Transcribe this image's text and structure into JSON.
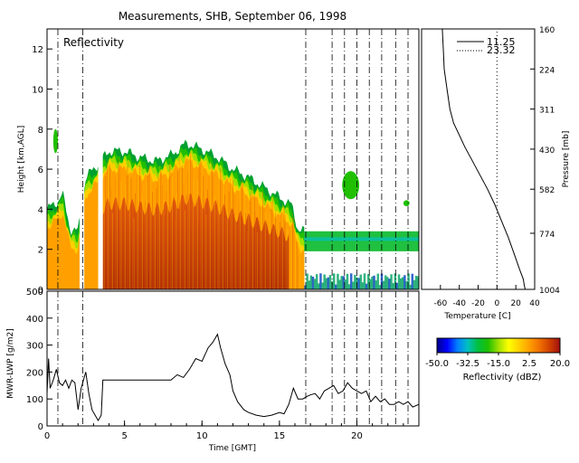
{
  "title": "Measurements, SHB, September 06, 1998",
  "colors": {
    "background": "#ffffff",
    "ink": "#000000",
    "colormap": [
      "#00008b",
      "#0000ff",
      "#0080ff",
      "#00c0c0",
      "#00c040",
      "#20c000",
      "#a0e000",
      "#ffff00",
      "#ffd000",
      "#ffa000",
      "#f07000",
      "#d04000",
      "#a01010"
    ]
  },
  "chart_data": [
    {
      "id": "reflectivity",
      "type": "heatmap",
      "panel_label": "Reflectivity",
      "xlim": [
        0,
        24
      ],
      "ylim": [
        0,
        13
      ],
      "ylabel": "Height [km,AGL]",
      "yticks": [
        0,
        2,
        4,
        6,
        8,
        10,
        12
      ],
      "dashdot_lines_x": [
        0.7,
        2.3,
        16.7,
        18.4,
        19.2,
        20.0,
        20.8,
        21.6,
        22.5,
        23.3
      ],
      "gaps_x": [
        [
          2.1,
          2.4
        ],
        [
          3.3,
          3.6
        ]
      ],
      "cloud_tops": [
        [
          0.0,
          4.0
        ],
        [
          0.7,
          4.4
        ],
        [
          1.0,
          4.8
        ],
        [
          1.5,
          3.0
        ],
        [
          2.0,
          2.9
        ],
        [
          2.5,
          5.6
        ],
        [
          3.0,
          6.0
        ],
        [
          4.0,
          6.9
        ],
        [
          5.0,
          6.9
        ],
        [
          6.0,
          6.6
        ],
        [
          7.0,
          6.4
        ],
        [
          8.0,
          6.7
        ],
        [
          9.0,
          7.3
        ],
        [
          10.0,
          7.0
        ],
        [
          11.0,
          6.6
        ],
        [
          12.0,
          6.0
        ],
        [
          13.0,
          5.6
        ],
        [
          14.0,
          5.1
        ],
        [
          15.0,
          4.6
        ],
        [
          15.8,
          4.2
        ],
        [
          16.2,
          3.0
        ],
        [
          16.6,
          2.9
        ]
      ],
      "low_cloud": {
        "x": [
          16.6,
          24.0
        ],
        "base_km": 1.9,
        "top_km": 2.9
      },
      "upper_blobs": [
        {
          "x": 19.6,
          "y": 5.2,
          "w": 1.1,
          "h": 1.4
        },
        {
          "x": 0.55,
          "y": 7.4,
          "w": 0.3,
          "h": 1.2
        },
        {
          "x": 23.2,
          "y": 4.3,
          "w": 0.4,
          "h": 0.3
        }
      ]
    },
    {
      "id": "temperature-profile",
      "type": "line",
      "xlabel": "Temperature [C]",
      "ylabel_right": "Pressure [mb]",
      "xlim": [
        -80,
        40
      ],
      "xticks": [
        -60,
        -40,
        -20,
        0,
        20,
        40
      ],
      "ylim_km": [
        0,
        13
      ],
      "pressure_ticks": [
        {
          "label": "160",
          "km": 13.0
        },
        {
          "label": "224",
          "km": 11.0
        },
        {
          "label": "311",
          "km": 9.0
        },
        {
          "label": "430",
          "km": 7.0
        },
        {
          "label": "582",
          "km": 5.0
        },
        {
          "label": "774",
          "km": 2.8
        },
        {
          "label": "1004",
          "km": 0.0
        }
      ],
      "series": [
        {
          "name": "11.25",
          "style": "solid",
          "points": [
            [
              30,
              0.0
            ],
            [
              29,
              0.2
            ],
            [
              28,
              0.5
            ],
            [
              24,
              1.0
            ],
            [
              18,
              1.8
            ],
            [
              12,
              2.6
            ],
            [
              5,
              3.4
            ],
            [
              -2,
              4.2
            ],
            [
              -10,
              5.0
            ],
            [
              -18,
              5.7
            ],
            [
              -26,
              6.4
            ],
            [
              -34,
              7.1
            ],
            [
              -40,
              7.7
            ],
            [
              -46,
              8.3
            ],
            [
              -50,
              9.0
            ],
            [
              -53,
              10.0
            ],
            [
              -56,
              11.0
            ],
            [
              -57,
              12.0
            ],
            [
              -58,
              13.0
            ]
          ]
        },
        {
          "name": "23.32",
          "style": "dotted",
          "points": [
            [
              0,
              0.0
            ],
            [
              0,
              13.0
            ]
          ]
        }
      ]
    },
    {
      "id": "liquid-water-path",
      "type": "line",
      "xlabel": "Time [GMT]",
      "ylabel": "MWR-LWP [g/m2]",
      "xlim": [
        0,
        24
      ],
      "ylim": [
        0,
        500
      ],
      "xticks": [
        0,
        5,
        10,
        15,
        20
      ],
      "yticks": [
        0,
        100,
        200,
        300,
        400,
        500
      ],
      "dashdot_lines_x": [
        0.7,
        2.3,
        16.7,
        18.4,
        19.2,
        20.0,
        20.8,
        21.6,
        22.5,
        23.3
      ],
      "points": [
        [
          0.0,
          120
        ],
        [
          0.1,
          250
        ],
        [
          0.2,
          140
        ],
        [
          0.4,
          170
        ],
        [
          0.6,
          210
        ],
        [
          0.8,
          160
        ],
        [
          1.0,
          150
        ],
        [
          1.2,
          170
        ],
        [
          1.4,
          140
        ],
        [
          1.6,
          170
        ],
        [
          1.8,
          160
        ],
        [
          2.0,
          60
        ],
        [
          2.2,
          140
        ],
        [
          2.5,
          200
        ],
        [
          2.7,
          120
        ],
        [
          2.9,
          60
        ],
        [
          3.1,
          40
        ],
        [
          3.3,
          20
        ],
        [
          3.5,
          40
        ],
        [
          3.6,
          170
        ],
        [
          8.0,
          170
        ],
        [
          8.4,
          190
        ],
        [
          8.8,
          180
        ],
        [
          9.2,
          210
        ],
        [
          9.6,
          250
        ],
        [
          10.0,
          240
        ],
        [
          10.4,
          290
        ],
        [
          10.7,
          310
        ],
        [
          11.0,
          340
        ],
        [
          11.2,
          290
        ],
        [
          11.5,
          230
        ],
        [
          11.8,
          190
        ],
        [
          12.0,
          130
        ],
        [
          12.3,
          90
        ],
        [
          12.7,
          60
        ],
        [
          13.0,
          50
        ],
        [
          13.5,
          40
        ],
        [
          14.0,
          35
        ],
        [
          14.5,
          40
        ],
        [
          15.0,
          50
        ],
        [
          15.3,
          45
        ],
        [
          15.6,
          80
        ],
        [
          15.9,
          140
        ],
        [
          16.2,
          100
        ],
        [
          16.5,
          100
        ],
        [
          16.8,
          110
        ],
        [
          17.0,
          115
        ],
        [
          17.3,
          120
        ],
        [
          17.6,
          100
        ],
        [
          17.9,
          130
        ],
        [
          18.2,
          140
        ],
        [
          18.5,
          150
        ],
        [
          18.8,
          120
        ],
        [
          19.1,
          130
        ],
        [
          19.4,
          160
        ],
        [
          19.7,
          140
        ],
        [
          20.0,
          130
        ],
        [
          20.3,
          120
        ],
        [
          20.6,
          130
        ],
        [
          20.9,
          90
        ],
        [
          21.2,
          110
        ],
        [
          21.5,
          90
        ],
        [
          21.8,
          100
        ],
        [
          22.1,
          80
        ],
        [
          22.4,
          80
        ],
        [
          22.7,
          90
        ],
        [
          23.0,
          80
        ],
        [
          23.3,
          90
        ],
        [
          23.6,
          70
        ],
        [
          24.0,
          80
        ]
      ]
    },
    {
      "id": "colorbar",
      "type": "heatmap",
      "label": "Reflectivity (dBZ)",
      "range": [
        -50,
        20
      ],
      "ticks": [
        {
          "value": -50,
          "label": "-50.0"
        },
        {
          "value": -32.5,
          "label": "-32.5"
        },
        {
          "value": -15,
          "label": "-15.0"
        },
        {
          "value": 2.5,
          "label": "2.5"
        },
        {
          "value": 20,
          "label": "20.0"
        }
      ]
    }
  ]
}
